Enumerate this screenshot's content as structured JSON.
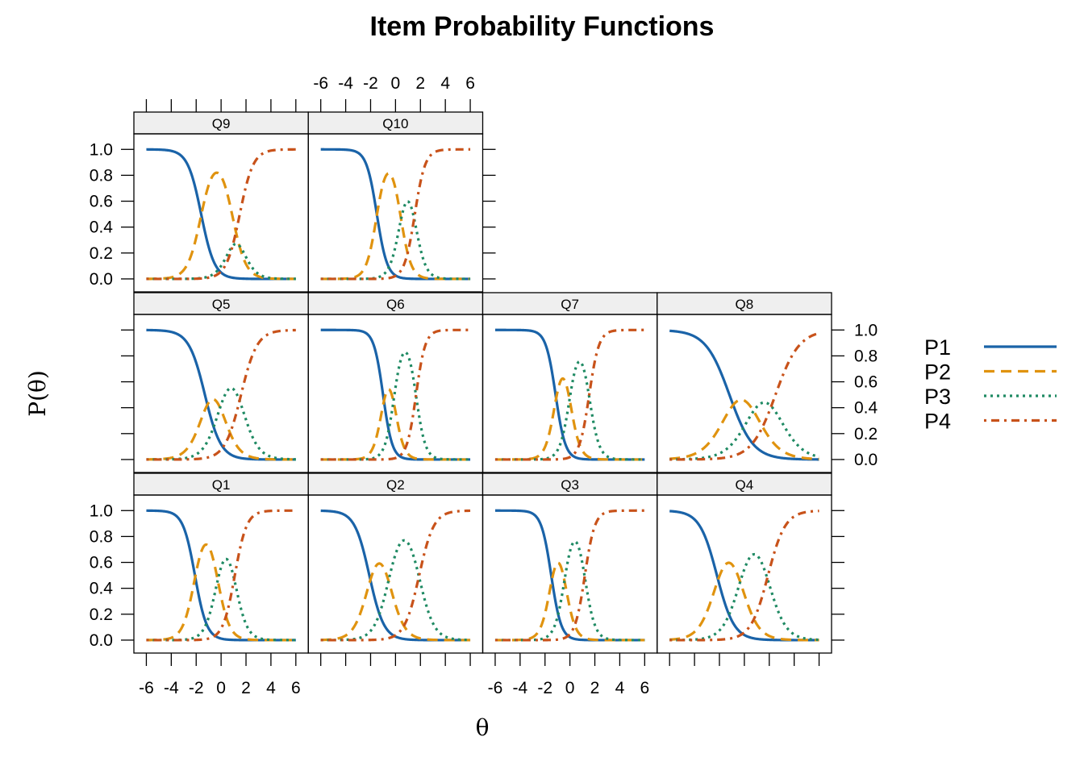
{
  "chart_data": {
    "type": "line",
    "title": "Item Probability Functions",
    "xlabel": "θ",
    "ylabel": "P(θ)",
    "xlim": [
      -7,
      7
    ],
    "ylim": [
      -0.1,
      1.12
    ],
    "x_ticks": [
      -6,
      -4,
      -2,
      0,
      2,
      4,
      6
    ],
    "y_ticks": [
      0.0,
      0.2,
      0.4,
      0.6,
      0.8,
      1.0
    ],
    "x_tick_labels": [
      "-6",
      "-4",
      "-2",
      "0",
      "2",
      "4",
      "6"
    ],
    "y_tick_labels": [
      "0.0",
      "0.2",
      "0.4",
      "0.6",
      "0.8",
      "1.0"
    ],
    "layout": "4 columns x 3 rows",
    "legend_position": "right",
    "legend": [
      {
        "name": "P1",
        "color": "#1a63a8",
        "dash": "solid"
      },
      {
        "name": "P2",
        "color": "#e0930f",
        "dash": "long-dash"
      },
      {
        "name": "P3",
        "color": "#1f8a63",
        "dash": "dotted"
      },
      {
        "name": "P4",
        "color": "#c8521a",
        "dash": "dot-dash"
      }
    ],
    "model": "graded response: P1 = 1 - S(b1), P2 = S(b1) - S(b2), P3 = S(b2) - S(b3), P4 = S(b3), S(bk) = 1/(1+exp(-a(θ-bk)))",
    "panels": [
      {
        "name": "Q1",
        "row": 0,
        "col": 0,
        "a": 2.1,
        "b": [
          -2.1,
          -0.3,
          1.1
        ]
      },
      {
        "name": "Q2",
        "row": 0,
        "col": 1,
        "a": 1.7,
        "b": [
          -2.1,
          -0.5,
          1.9
        ]
      },
      {
        "name": "Q3",
        "row": 0,
        "col": 2,
        "a": 2.5,
        "b": [
          -1.5,
          -0.4,
          1.2
        ]
      },
      {
        "name": "Q4",
        "row": 0,
        "col": 3,
        "a": 1.45,
        "b": [
          -2.2,
          -0.3,
          1.9
        ]
      },
      {
        "name": "Q5",
        "row": 1,
        "col": 0,
        "a": 1.55,
        "b": [
          -1.3,
          0.0,
          1.6
        ]
      },
      {
        "name": "Q6",
        "row": 1,
        "col": 1,
        "a": 2.7,
        "b": [
          -1.0,
          -0.1,
          1.65
        ]
      },
      {
        "name": "Q7",
        "row": 1,
        "col": 2,
        "a": 2.55,
        "b": [
          -1.15,
          0.0,
          1.55
        ]
      },
      {
        "name": "Q8",
        "row": 1,
        "col": 3,
        "a": 1.05,
        "b": [
          -1.2,
          0.7,
          2.5
        ]
      },
      {
        "name": "Q9",
        "row": 2,
        "col": 0,
        "a": 1.85,
        "b": [
          -1.6,
          0.9,
          1.5
        ]
      },
      {
        "name": "Q10",
        "row": 2,
        "col": 1,
        "a": 2.4,
        "b": [
          -1.5,
          0.4,
          1.55
        ]
      }
    ]
  }
}
